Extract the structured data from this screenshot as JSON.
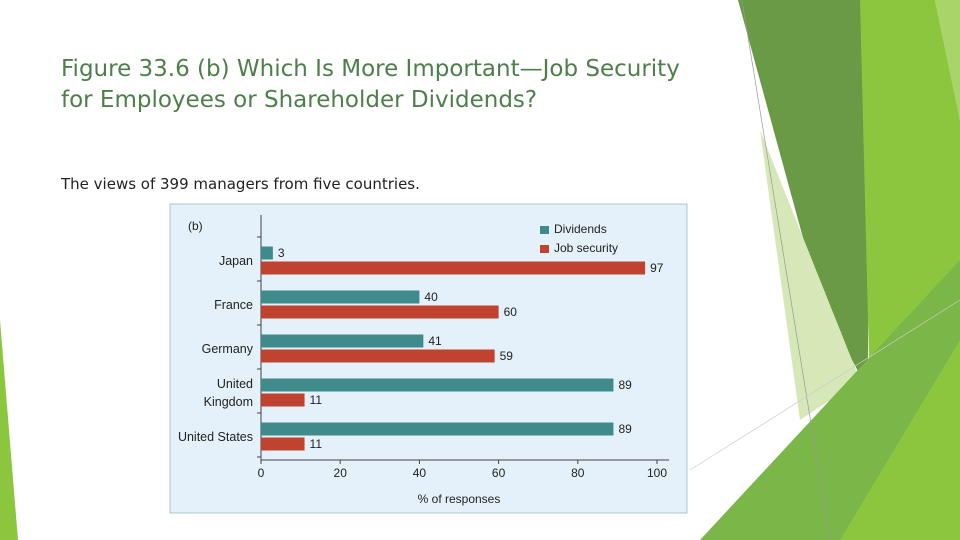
{
  "title": "Figure 33.6 (b) Which Is More Important—Job Security for Employees or Shareholder Dividends?",
  "subtitle": "The views of 399 managers from five countries.",
  "chart_data": {
    "type": "bar",
    "orientation": "horizontal",
    "panel_label": "(b)",
    "categories": [
      "Japan",
      "France",
      "Germany",
      "United Kingdom",
      "United States"
    ],
    "series": [
      {
        "name": "Dividends",
        "color": "#3f8a8a",
        "values": [
          3,
          40,
          41,
          89,
          89
        ]
      },
      {
        "name": "Job security",
        "color": "#c0432f",
        "values": [
          97,
          60,
          59,
          11,
          11
        ]
      }
    ],
    "xlim": [
      0,
      100
    ],
    "xticks": [
      0,
      20,
      40,
      60,
      80,
      100
    ],
    "xlabel": "% of responses",
    "legend": "upper right"
  }
}
